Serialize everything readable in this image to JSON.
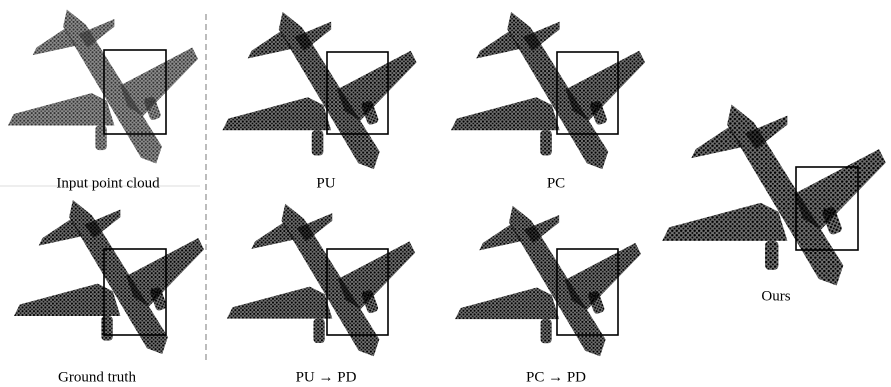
{
  "captions": {
    "input": "Input point cloud",
    "pu": "PU",
    "pc": "PC",
    "ground_truth": "Ground truth",
    "pu_pd": "PU → PD",
    "pc_pd": "PC → PD",
    "ours": "Ours"
  }
}
